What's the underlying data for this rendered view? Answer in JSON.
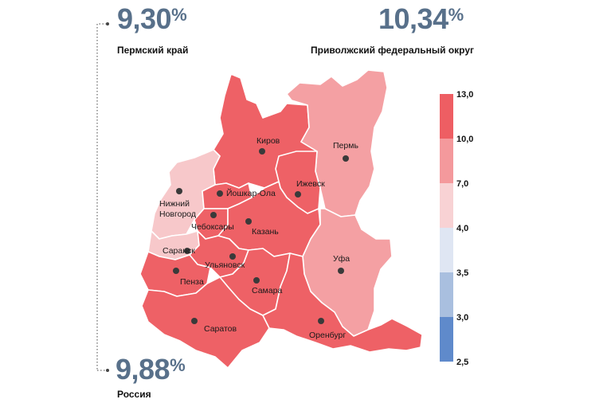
{
  "stats": {
    "perm": {
      "value": "9,30",
      "unit": "%",
      "label": "Пермский край"
    },
    "pfo": {
      "value": "10,34",
      "unit": "%",
      "label": "Приволжский федеральный округ"
    },
    "russia": {
      "value": "9,88",
      "unit": "%",
      "label": "Россия"
    }
  },
  "cities": [
    {
      "id": "kirov",
      "name": "Киров"
    },
    {
      "id": "perm",
      "name": "Пермь"
    },
    {
      "id": "izhevsk",
      "name": "Ижевск"
    },
    {
      "id": "yoshkar-ola",
      "name": "Йошкар-Ола"
    },
    {
      "id": "nizhny",
      "name": "Нижний\nНовгород"
    },
    {
      "id": "cheboksary",
      "name": "Чебоксары"
    },
    {
      "id": "kazan",
      "name": "Казань"
    },
    {
      "id": "saransk",
      "name": "Саранск"
    },
    {
      "id": "ufa",
      "name": "Уфа"
    },
    {
      "id": "ulyanovsk",
      "name": "Ульяновск"
    },
    {
      "id": "penza",
      "name": "Пенза"
    },
    {
      "id": "samara",
      "name": "Самара"
    },
    {
      "id": "saratov",
      "name": "Саратов"
    },
    {
      "id": "orenburg",
      "name": "Оренбург"
    }
  ],
  "legend": {
    "ticks": [
      "13,0",
      "10,0",
      "7,0",
      "4,0",
      "3,5",
      "3,0",
      "2,5"
    ],
    "band_colors": [
      "#ee5e63",
      "#f4999c",
      "#f8d2d4",
      "#dfe6f3",
      "#a9bfdf",
      "#5f8acb"
    ]
  },
  "colors": {
    "high": "#ee6166",
    "mid": "#f4a0a3",
    "light": "#f7c8ca",
    "stat_text": "#58708a"
  }
}
